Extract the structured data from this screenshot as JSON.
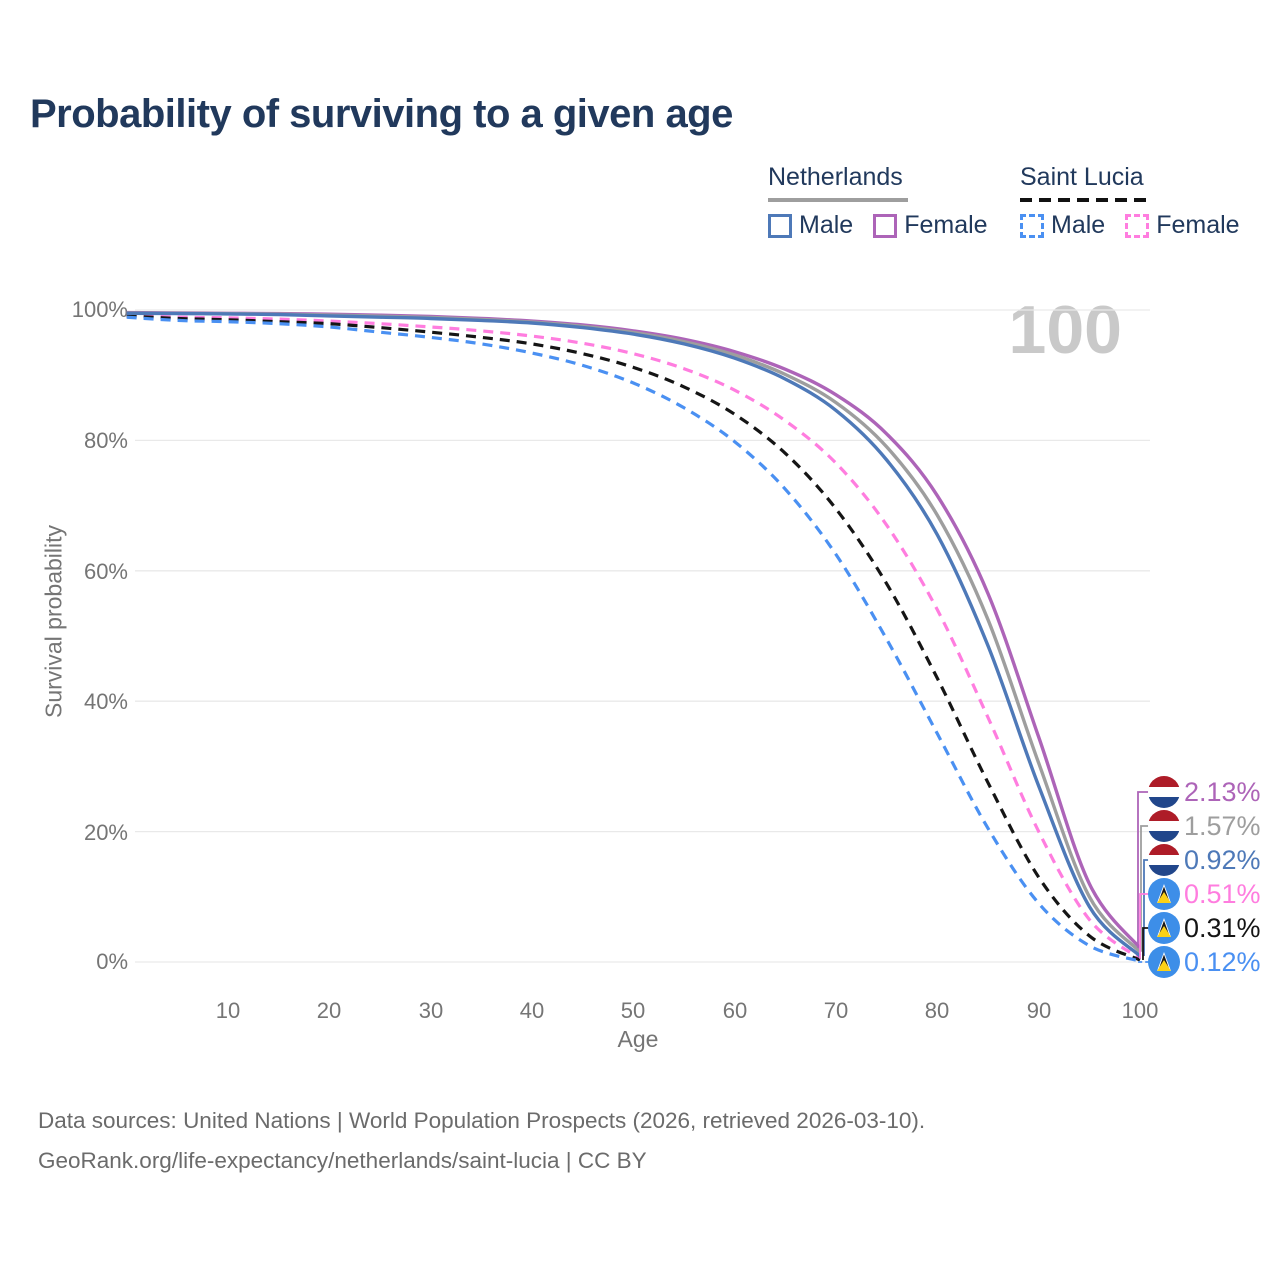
{
  "title": "Probability of surviving to a given age",
  "legend": {
    "groups": [
      {
        "title": "Netherlands",
        "line_style": "solid",
        "items": [
          {
            "label": "Male",
            "color": "#4e79b8",
            "style": "solid"
          },
          {
            "label": "Female",
            "color": "#ad64b8",
            "style": "solid"
          }
        ]
      },
      {
        "title": "Saint Lucia",
        "line_style": "dashed",
        "items": [
          {
            "label": "Male",
            "color": "#4a90f2",
            "style": "dashed"
          },
          {
            "label": "Female",
            "color": "#ff7ddf",
            "style": "dashed"
          }
        ]
      }
    ]
  },
  "chart_data": {
    "type": "line",
    "title": "Probability of surviving to a given age",
    "xlabel": "Age",
    "ylabel": "Survival probability",
    "xlim": [
      0,
      100
    ],
    "ylim": [
      0,
      100
    ],
    "grid": "horizontal",
    "watermark": "100",
    "xticks": [
      "10",
      "20",
      "30",
      "40",
      "50",
      "60",
      "70",
      "80",
      "90",
      "100"
    ],
    "yticks": [
      "0%",
      "20%",
      "40%",
      "60%",
      "80%",
      "100%"
    ],
    "x": [
      0,
      5,
      10,
      15,
      20,
      25,
      30,
      35,
      40,
      45,
      50,
      55,
      60,
      65,
      70,
      75,
      80,
      85,
      90,
      95,
      100
    ],
    "series": [
      {
        "name": "Netherlands Female",
        "country": "Netherlands",
        "sex": "Female",
        "color": "#ad64b8",
        "style": "solid",
        "flag": "nl",
        "end_label": "2.13%",
        "values": [
          99.6,
          99.55,
          99.5,
          99.45,
          99.35,
          99.2,
          99.0,
          98.7,
          98.3,
          97.7,
          96.8,
          95.5,
          93.6,
          90.9,
          87.0,
          81.0,
          71.5,
          56.5,
          34.5,
          12.0,
          2.13
        ]
      },
      {
        "name": "Netherlands",
        "country": "Netherlands",
        "sex": "Both",
        "color": "#9e9e9e",
        "style": "solid",
        "flag": "nl",
        "end_label": "1.57%",
        "values": [
          99.55,
          99.5,
          99.45,
          99.37,
          99.22,
          99.05,
          98.85,
          98.55,
          98.15,
          97.5,
          96.55,
          95.15,
          93.1,
          90.1,
          85.8,
          79.0,
          68.5,
          52.5,
          30.5,
          10.0,
          1.57
        ]
      },
      {
        "name": "Netherlands Male",
        "country": "Netherlands",
        "sex": "Male",
        "color": "#4e79b8",
        "style": "solid",
        "flag": "nl",
        "end_label": "0.92%",
        "values": [
          99.5,
          99.45,
          99.4,
          99.3,
          99.1,
          98.9,
          98.7,
          98.4,
          98.0,
          97.3,
          96.3,
          94.8,
          92.6,
          89.4,
          84.6,
          77.0,
          65.5,
          48.5,
          27.0,
          8.5,
          0.92
        ]
      },
      {
        "name": "Saint Lucia Female",
        "country": "Saint Lucia",
        "sex": "Female",
        "color": "#ff7ddf",
        "style": "dashed",
        "flag": "lc",
        "end_label": "0.51%",
        "values": [
          99.2,
          98.9,
          98.8,
          98.6,
          98.3,
          97.9,
          97.4,
          96.8,
          96.0,
          94.9,
          93.3,
          91.0,
          87.7,
          83.0,
          76.5,
          67.0,
          54.0,
          37.5,
          20.0,
          6.5,
          0.51
        ]
      },
      {
        "name": "Saint Lucia",
        "country": "Saint Lucia",
        "sex": "Both",
        "color": "#151515",
        "style": "dashed",
        "flag": "lc",
        "end_label": "0.31%",
        "values": [
          99.1,
          98.7,
          98.5,
          98.2,
          97.9,
          97.3,
          96.6,
          95.8,
          94.8,
          93.3,
          91.2,
          88.2,
          84.0,
          78.0,
          69.5,
          58.0,
          43.5,
          27.5,
          13.0,
          4.0,
          0.31
        ]
      },
      {
        "name": "Saint Lucia Male",
        "country": "Saint Lucia",
        "sex": "Male",
        "color": "#4a90f2",
        "style": "dashed",
        "flag": "lc",
        "end_label": "0.12%",
        "values": [
          98.9,
          98.4,
          98.2,
          97.9,
          97.4,
          96.6,
          95.8,
          94.8,
          93.4,
          91.5,
          88.8,
          85.0,
          79.8,
          72.5,
          62.5,
          49.5,
          35.0,
          20.5,
          9.0,
          2.5,
          0.12
        ]
      }
    ]
  },
  "footer": {
    "line1": "Data sources: United Nations | World Population Prospects (2026, retrieved 2026-03-10).",
    "line2": "GeoRank.org/life-expectancy/netherlands/saint-lucia | CC BY"
  },
  "flag_colors": {
    "nl_red": "#ae1c28",
    "nl_white": "#ffffff",
    "nl_blue": "#21468b",
    "lc_blue": "#3d8ee8",
    "lc_yellow": "#fcd116",
    "lc_black": "#1a1a1a",
    "lc_white": "#ffffff"
  }
}
